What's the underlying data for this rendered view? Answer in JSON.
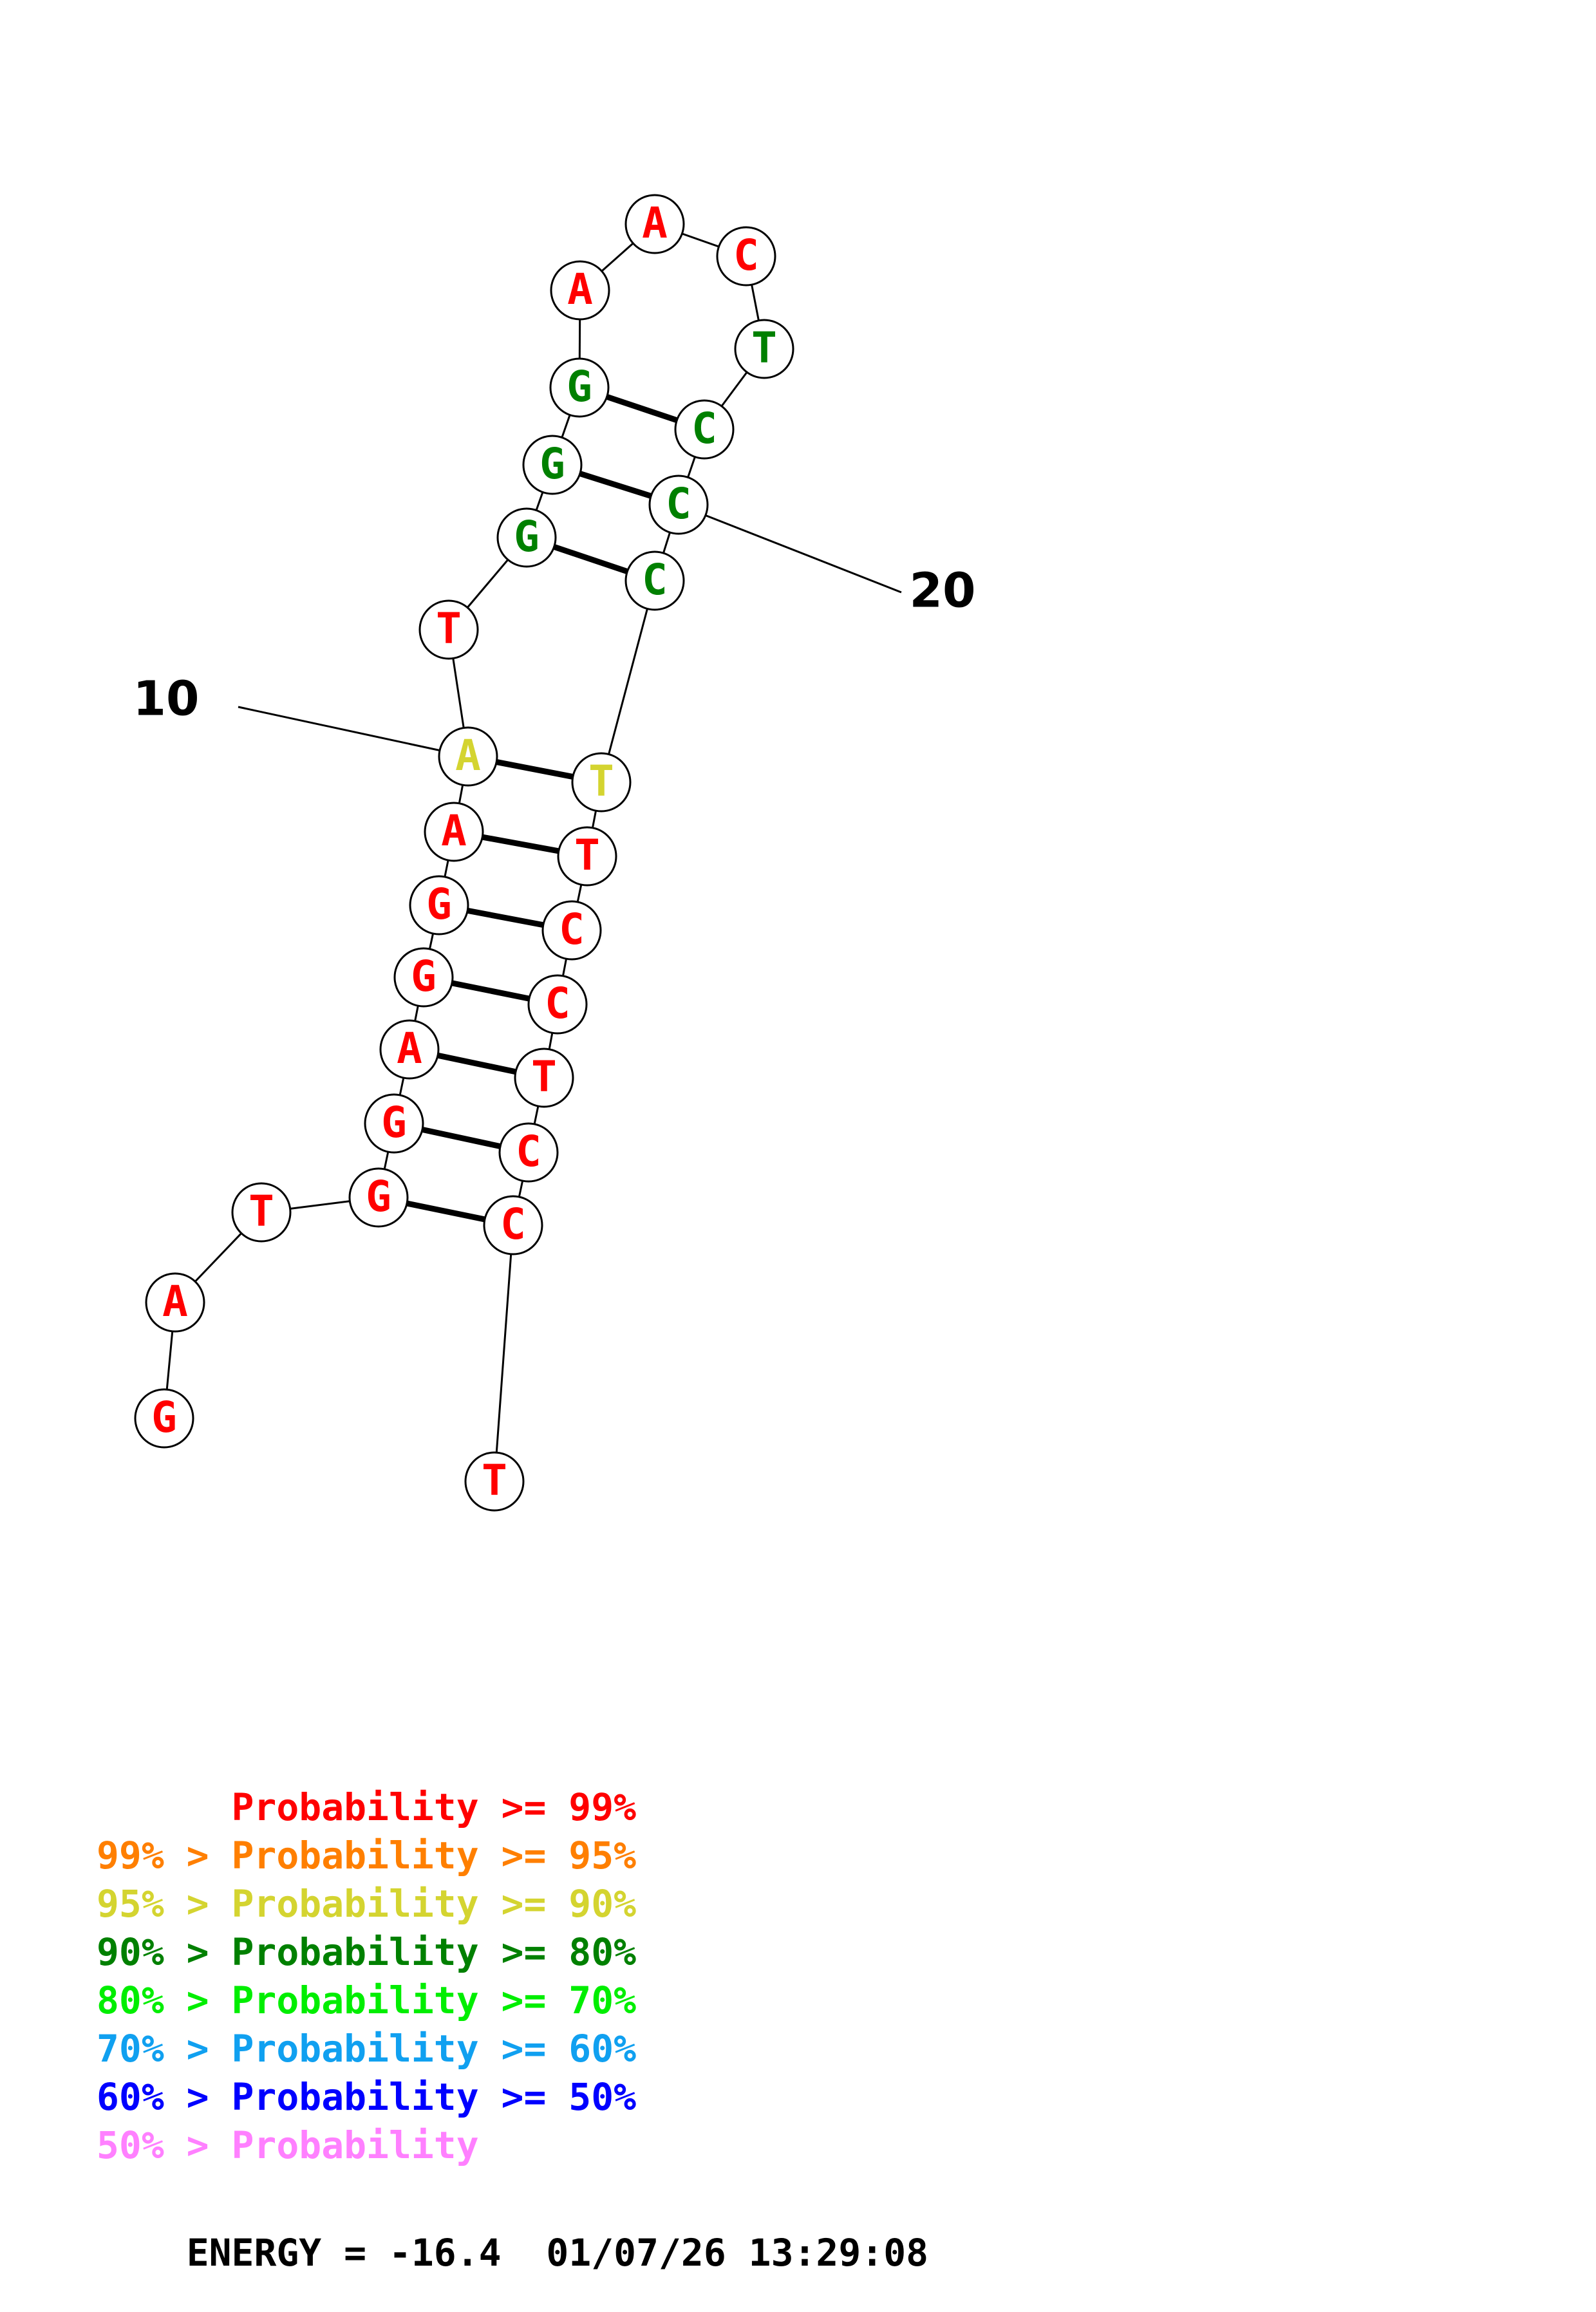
{
  "palette": {
    "red": "#ff0000",
    "orange": "#ff7f00",
    "yellow": "#d4d430",
    "darkgreen": "#008000",
    "green": "#00ee00",
    "cyan": "#10a0f0",
    "blue": "#0000ff",
    "pink": "#ff80ff",
    "black": "#000000"
  },
  "nucleotides": [
    {
      "index": 1,
      "base": "G",
      "color": "red"
    },
    {
      "index": 2,
      "base": "A",
      "color": "red"
    },
    {
      "index": 3,
      "base": "T",
      "color": "red"
    },
    {
      "index": 4,
      "base": "G",
      "color": "red"
    },
    {
      "index": 5,
      "base": "G",
      "color": "red"
    },
    {
      "index": 6,
      "base": "A",
      "color": "red"
    },
    {
      "index": 7,
      "base": "G",
      "color": "red"
    },
    {
      "index": 8,
      "base": "G",
      "color": "red"
    },
    {
      "index": 9,
      "base": "A",
      "color": "red"
    },
    {
      "index": 10,
      "base": "A",
      "color": "yellow"
    },
    {
      "index": 11,
      "base": "T",
      "color": "red"
    },
    {
      "index": 12,
      "base": "G",
      "color": "darkgreen"
    },
    {
      "index": 13,
      "base": "G",
      "color": "darkgreen"
    },
    {
      "index": 14,
      "base": "G",
      "color": "darkgreen"
    },
    {
      "index": 15,
      "base": "A",
      "color": "red"
    },
    {
      "index": 16,
      "base": "A",
      "color": "red"
    },
    {
      "index": 17,
      "base": "C",
      "color": "red"
    },
    {
      "index": 18,
      "base": "T",
      "color": "darkgreen"
    },
    {
      "index": 19,
      "base": "C",
      "color": "darkgreen"
    },
    {
      "index": 20,
      "base": "C",
      "color": "darkgreen"
    },
    {
      "index": 21,
      "base": "C",
      "color": "darkgreen"
    },
    {
      "index": 22,
      "base": "T",
      "color": "yellow"
    },
    {
      "index": 23,
      "base": "T",
      "color": "red"
    },
    {
      "index": 24,
      "base": "C",
      "color": "red"
    },
    {
      "index": 25,
      "base": "C",
      "color": "red"
    },
    {
      "index": 26,
      "base": "T",
      "color": "red"
    },
    {
      "index": 27,
      "base": "C",
      "color": "red"
    },
    {
      "index": 28,
      "base": "C",
      "color": "red"
    },
    {
      "index": 29,
      "base": "T",
      "color": "red"
    }
  ],
  "pairs": [
    [
      4,
      28
    ],
    [
      5,
      27
    ],
    [
      6,
      26
    ],
    [
      7,
      25
    ],
    [
      8,
      24
    ],
    [
      9,
      23
    ],
    [
      10,
      22
    ],
    [
      12,
      21
    ],
    [
      13,
      20
    ],
    [
      14,
      19
    ]
  ],
  "index_labels": [
    {
      "nucleotide": 10,
      "text": "10"
    },
    {
      "nucleotide": 20,
      "text": "20"
    }
  ],
  "legend": [
    {
      "prefix": "    ",
      "text": "Probability >= 99%",
      "color": "red"
    },
    {
      "prefix": "99% > ",
      "text": "Probability >= 95%",
      "color": "orange"
    },
    {
      "prefix": "95% > ",
      "text": "Probability >= 90%",
      "color": "yellow"
    },
    {
      "prefix": "90% > ",
      "text": "Probability >= 80%",
      "color": "darkgreen"
    },
    {
      "prefix": "80% > ",
      "text": "Probability >= 70%",
      "color": "green"
    },
    {
      "prefix": "70% > ",
      "text": "Probability >= 60%",
      "color": "cyan"
    },
    {
      "prefix": "60% > ",
      "text": "Probability >= 50%",
      "color": "blue"
    },
    {
      "prefix": "50% > ",
      "text": "Probability",
      "color": "pink"
    }
  ],
  "footer": {
    "energy": "ENERGY = -16.4",
    "timestamp": "01/07/26 13:29:08"
  }
}
